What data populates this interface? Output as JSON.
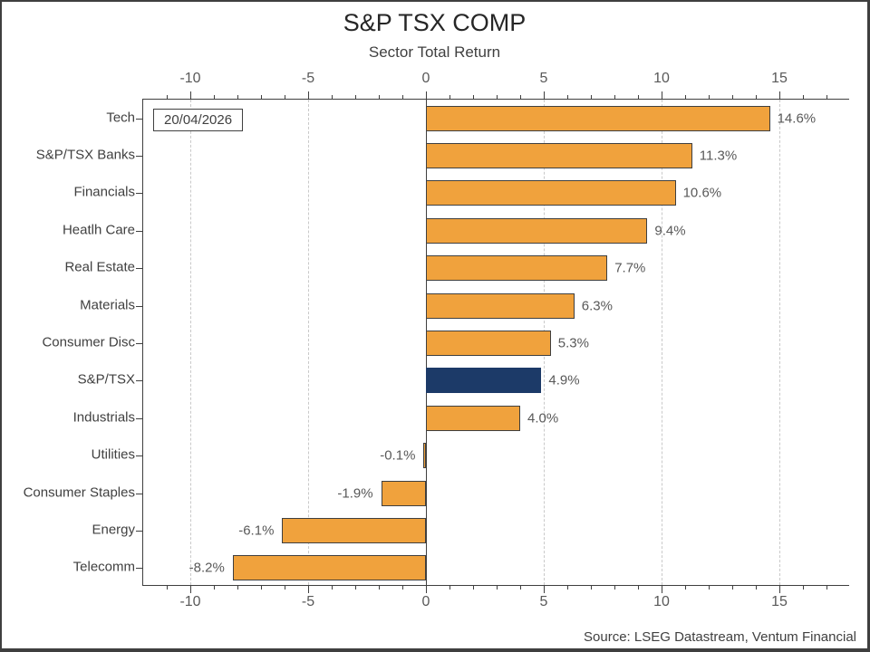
{
  "chart": {
    "title": "S&P TSX COMP",
    "subtitle": "Sector Total Return",
    "date_label": "20/04/2026",
    "source": "Source: LSEG Datastream, Ventum Financial"
  },
  "chart_data": {
    "type": "bar",
    "orientation": "horizontal",
    "title": "S&P TSX COMP",
    "subtitle": "Sector Total Return",
    "categories": [
      "Tech",
      "S&P/TSX Banks",
      "Financials",
      "Heatlh Care",
      "Real Estate",
      "Materials",
      "Consumer Disc",
      "S&P/TSX",
      "Industrials",
      "Utilities",
      "Consumer Staples",
      "Energy",
      "Telecomm"
    ],
    "values": [
      14.6,
      11.3,
      10.6,
      9.4,
      7.7,
      6.3,
      5.3,
      4.9,
      4.0,
      -0.1,
      -1.9,
      -6.1,
      -8.2
    ],
    "value_labels": [
      "14.6%",
      "11.3%",
      "10.6%",
      "9.4%",
      "7.7%",
      "6.3%",
      "5.3%",
      "4.9%",
      "4.0%",
      "-0.1%",
      "-1.9%",
      "-6.1%",
      "-8.2%"
    ],
    "highlight_category": "S&P/TSX",
    "annotation": "20/04/2026",
    "xlim": [
      -12,
      18
    ],
    "x_major_ticks": [
      -10,
      -5,
      0,
      5,
      10,
      15
    ],
    "x_minor_tick_step": 1,
    "gridlines_at": [
      -10,
      -5,
      5,
      10,
      15
    ],
    "grid": "vertical-dashed",
    "axis_mirrored_top": true,
    "legend": "none",
    "colors": {
      "bar": "#F0A23D",
      "bar_border": "#3f3f3f",
      "highlight": "#1C3A68",
      "axis": "#3f3f3f",
      "gridline": "#c9c9c9",
      "tick_label": "#595959"
    },
    "source": "Source: LSEG Datastream, Ventum Financial"
  }
}
